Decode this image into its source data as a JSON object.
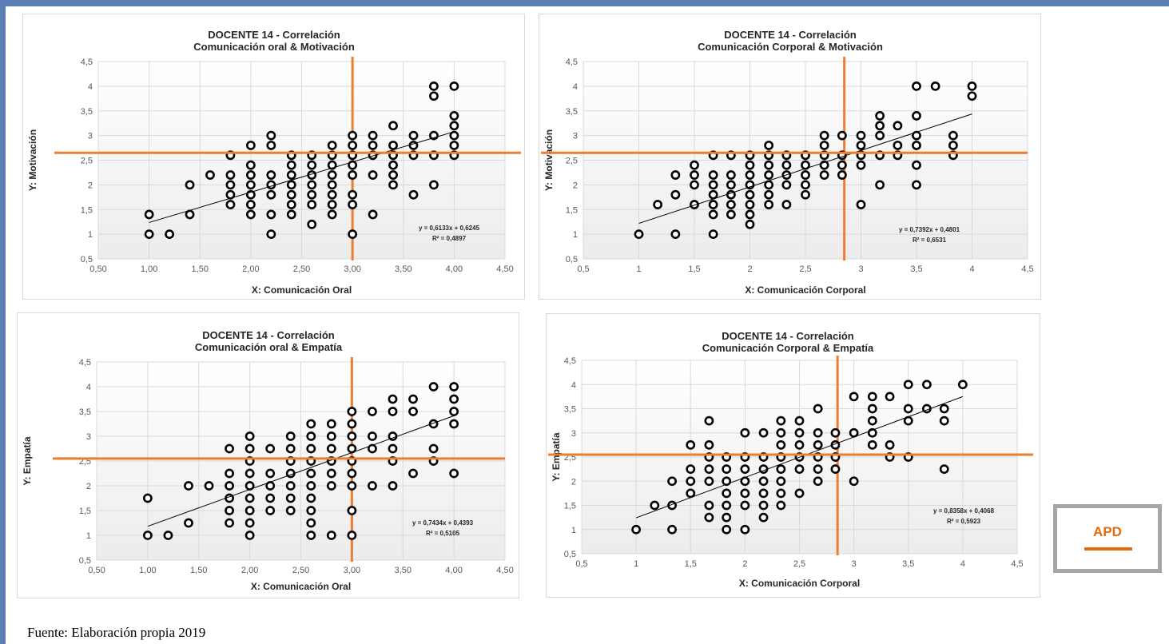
{
  "source_note": "Fuente: Elaboración propia 2019",
  "badge": {
    "label": "APD",
    "color": "#e46c0a"
  },
  "colors": {
    "reference_lines": "#ed7d31",
    "points": "#000000",
    "frame": "#5b7fb5"
  },
  "chart_data": [
    {
      "type": "scatter",
      "title": [
        "DOCENTE 14 - Correlación",
        "Comunicación oral & Motivación"
      ],
      "xlabel": "X: Comunicación Oral",
      "ylabel": "Y: Motivación",
      "xlim": [
        0.5,
        4.5
      ],
      "ylim": [
        0.5,
        4.5
      ],
      "xticks": [
        "0,50",
        "1,00",
        "1,50",
        "2,00",
        "2,50",
        "3,00",
        "3,50",
        "4,00",
        "4,50"
      ],
      "yticks": [
        "0,5",
        "1",
        "1,5",
        "2",
        "2,5",
        "3",
        "3,5",
        "4",
        "4,5"
      ],
      "equation": "y = 0,6133x + 0,6245",
      "r2": "R² = 0,4897",
      "trend": {
        "slope": 0.6133,
        "intercept": 0.6245
      },
      "reference_lines": {
        "x": 3.0,
        "y": 2.65
      },
      "points": [
        [
          1,
          1
        ],
        [
          1,
          1.4
        ],
        [
          1.2,
          1
        ],
        [
          1.4,
          1.4
        ],
        [
          1.4,
          2
        ],
        [
          1.6,
          2.2
        ],
        [
          1.8,
          1.6
        ],
        [
          1.8,
          1.8
        ],
        [
          1.8,
          2
        ],
        [
          1.8,
          2.2
        ],
        [
          1.8,
          2.6
        ],
        [
          2,
          1.4
        ],
        [
          2,
          1.6
        ],
        [
          2,
          1.8
        ],
        [
          2,
          2
        ],
        [
          2,
          2.2
        ],
        [
          2,
          2.4
        ],
        [
          2,
          2.8
        ],
        [
          2.2,
          1
        ],
        [
          2.2,
          1.4
        ],
        [
          2.2,
          1.8
        ],
        [
          2.2,
          2
        ],
        [
          2.2,
          2.2
        ],
        [
          2.2,
          2.8
        ],
        [
          2.2,
          3
        ],
        [
          2.4,
          1.4
        ],
        [
          2.4,
          1.6
        ],
        [
          2.4,
          1.8
        ],
        [
          2.4,
          2
        ],
        [
          2.4,
          2.2
        ],
        [
          2.4,
          2.4
        ],
        [
          2.4,
          2.6
        ],
        [
          2.6,
          1.2
        ],
        [
          2.6,
          1.6
        ],
        [
          2.6,
          1.8
        ],
        [
          2.6,
          2
        ],
        [
          2.6,
          2.2
        ],
        [
          2.6,
          2.4
        ],
        [
          2.6,
          2.6
        ],
        [
          2.8,
          1.4
        ],
        [
          2.8,
          1.6
        ],
        [
          2.8,
          1.8
        ],
        [
          2.8,
          2
        ],
        [
          2.8,
          2.2
        ],
        [
          2.8,
          2.4
        ],
        [
          2.8,
          2.6
        ],
        [
          2.8,
          2.8
        ],
        [
          3,
          1
        ],
        [
          3,
          1.6
        ],
        [
          3,
          1.8
        ],
        [
          3,
          2.2
        ],
        [
          3,
          2.4
        ],
        [
          3,
          2.6
        ],
        [
          3,
          2.8
        ],
        [
          3,
          3
        ],
        [
          3.2,
          1.4
        ],
        [
          3.2,
          2.2
        ],
        [
          3.2,
          2.6
        ],
        [
          3.2,
          2.8
        ],
        [
          3.2,
          3
        ],
        [
          3.4,
          2
        ],
        [
          3.4,
          2.2
        ],
        [
          3.4,
          2.4
        ],
        [
          3.4,
          2.6
        ],
        [
          3.4,
          2.8
        ],
        [
          3.4,
          3.2
        ],
        [
          3.6,
          1.8
        ],
        [
          3.6,
          2.6
        ],
        [
          3.6,
          2.8
        ],
        [
          3.6,
          3
        ],
        [
          3.8,
          2
        ],
        [
          3.8,
          2.6
        ],
        [
          3.8,
          3
        ],
        [
          3.8,
          3.8
        ],
        [
          3.8,
          4
        ],
        [
          4,
          2.6
        ],
        [
          4,
          2.8
        ],
        [
          4,
          3
        ],
        [
          4,
          3.2
        ],
        [
          4,
          3.4
        ],
        [
          4,
          4
        ]
      ]
    },
    {
      "type": "scatter",
      "title": [
        "DOCENTE 14 - Correlación",
        "Comunicación Corporal & Motivación"
      ],
      "xlabel": "X: Comunicación Corporal",
      "ylabel": "Y: Motivación",
      "xlim": [
        0.5,
        4.5
      ],
      "ylim": [
        0.5,
        4.5
      ],
      "xticks": [
        "0,5",
        "1",
        "1,5",
        "2",
        "2,5",
        "3",
        "3,5",
        "4",
        "4,5"
      ],
      "yticks": [
        "0,5",
        "1",
        "1,5",
        "2",
        "2,5",
        "3",
        "3,5",
        "4",
        "4,5"
      ],
      "equation": "y = 0,7392x + 0,4801",
      "r2": "R² = 0,6531",
      "trend": {
        "slope": 0.7392,
        "intercept": 0.4801
      },
      "reference_lines": {
        "x": 2.85,
        "y": 2.65
      },
      "points": [
        [
          1,
          1
        ],
        [
          1.17,
          1.6
        ],
        [
          1.33,
          1
        ],
        [
          1.33,
          1.8
        ],
        [
          1.33,
          2.2
        ],
        [
          1.5,
          1.6
        ],
        [
          1.5,
          2
        ],
        [
          1.5,
          2.2
        ],
        [
          1.5,
          2.4
        ],
        [
          1.67,
          1
        ],
        [
          1.67,
          1.4
        ],
        [
          1.67,
          1.6
        ],
        [
          1.67,
          1.8
        ],
        [
          1.67,
          2
        ],
        [
          1.67,
          2.2
        ],
        [
          1.67,
          2.6
        ],
        [
          1.83,
          1.4
        ],
        [
          1.83,
          1.6
        ],
        [
          1.83,
          1.8
        ],
        [
          1.83,
          2
        ],
        [
          1.83,
          2.2
        ],
        [
          1.83,
          2.6
        ],
        [
          2,
          1.2
        ],
        [
          2,
          1.4
        ],
        [
          2,
          1.6
        ],
        [
          2,
          1.8
        ],
        [
          2,
          2
        ],
        [
          2,
          2.2
        ],
        [
          2,
          2.4
        ],
        [
          2,
          2.6
        ],
        [
          2.17,
          1.6
        ],
        [
          2.17,
          1.8
        ],
        [
          2.17,
          2
        ],
        [
          2.17,
          2.2
        ],
        [
          2.17,
          2.4
        ],
        [
          2.17,
          2.6
        ],
        [
          2.17,
          2.8
        ],
        [
          2.33,
          1.6
        ],
        [
          2.33,
          2
        ],
        [
          2.33,
          2.2
        ],
        [
          2.33,
          2.4
        ],
        [
          2.33,
          2.6
        ],
        [
          2.5,
          1.8
        ],
        [
          2.5,
          2
        ],
        [
          2.5,
          2.2
        ],
        [
          2.5,
          2.4
        ],
        [
          2.5,
          2.6
        ],
        [
          2.67,
          2.2
        ],
        [
          2.67,
          2.4
        ],
        [
          2.67,
          2.6
        ],
        [
          2.67,
          2.8
        ],
        [
          2.67,
          3
        ],
        [
          2.83,
          2.2
        ],
        [
          2.83,
          2.4
        ],
        [
          2.83,
          2.6
        ],
        [
          2.83,
          3
        ],
        [
          3,
          1.6
        ],
        [
          3,
          2.4
        ],
        [
          3,
          2.6
        ],
        [
          3,
          2.8
        ],
        [
          3,
          3
        ],
        [
          3.17,
          2
        ],
        [
          3.17,
          2.6
        ],
        [
          3.17,
          3
        ],
        [
          3.17,
          3.2
        ],
        [
          3.17,
          3.4
        ],
        [
          3.33,
          2.6
        ],
        [
          3.33,
          2.8
        ],
        [
          3.33,
          3.2
        ],
        [
          3.5,
          2
        ],
        [
          3.5,
          2.4
        ],
        [
          3.5,
          2.8
        ],
        [
          3.5,
          3
        ],
        [
          3.5,
          3.4
        ],
        [
          3.5,
          4
        ],
        [
          3.67,
          4
        ],
        [
          3.83,
          2.6
        ],
        [
          3.83,
          2.8
        ],
        [
          3.83,
          3
        ],
        [
          4,
          3.8
        ],
        [
          4,
          4
        ]
      ]
    },
    {
      "type": "scatter",
      "title": [
        "DOCENTE 14 - Correlación",
        "Comunicación oral & Empatía"
      ],
      "xlabel": "X: Comunicación Oral",
      "ylabel": "Y: Empatía",
      "xlim": [
        0.5,
        4.5
      ],
      "ylim": [
        0.5,
        4.5
      ],
      "xticks": [
        "0,50",
        "1,00",
        "1,50",
        "2,00",
        "2,50",
        "3,00",
        "3,50",
        "4,00",
        "4,50"
      ],
      "yticks": [
        "0,5",
        "1",
        "1,5",
        "2",
        "2,5",
        "3",
        "3,5",
        "4",
        "4,5"
      ],
      "equation": "y = 0,7434x + 0,4393",
      "r2": "R² = 0,5105",
      "trend": {
        "slope": 0.7434,
        "intercept": 0.4393
      },
      "reference_lines": {
        "x": 3.0,
        "y": 2.55
      },
      "points": [
        [
          1,
          1
        ],
        [
          1,
          1.75
        ],
        [
          1.2,
          1
        ],
        [
          1.4,
          1.25
        ],
        [
          1.4,
          2
        ],
        [
          1.6,
          2
        ],
        [
          1.8,
          1.25
        ],
        [
          1.8,
          1.5
        ],
        [
          1.8,
          1.75
        ],
        [
          1.8,
          2
        ],
        [
          1.8,
          2.25
        ],
        [
          1.8,
          2.75
        ],
        [
          2,
          1
        ],
        [
          2,
          1.25
        ],
        [
          2,
          1.5
        ],
        [
          2,
          1.75
        ],
        [
          2,
          2
        ],
        [
          2,
          2.25
        ],
        [
          2,
          2.5
        ],
        [
          2,
          2.75
        ],
        [
          2,
          3
        ],
        [
          2.2,
          1.5
        ],
        [
          2.2,
          1.75
        ],
        [
          2.2,
          2
        ],
        [
          2.2,
          2.25
        ],
        [
          2.2,
          2.75
        ],
        [
          2.4,
          1.5
        ],
        [
          2.4,
          1.75
        ],
        [
          2.4,
          2
        ],
        [
          2.4,
          2.25
        ],
        [
          2.4,
          2.5
        ],
        [
          2.4,
          2.75
        ],
        [
          2.4,
          3
        ],
        [
          2.6,
          1
        ],
        [
          2.6,
          1.25
        ],
        [
          2.6,
          1.5
        ],
        [
          2.6,
          1.75
        ],
        [
          2.6,
          2
        ],
        [
          2.6,
          2.25
        ],
        [
          2.6,
          2.5
        ],
        [
          2.6,
          2.75
        ],
        [
          2.6,
          3
        ],
        [
          2.6,
          3.25
        ],
        [
          2.8,
          1
        ],
        [
          2.8,
          2
        ],
        [
          2.8,
          2.25
        ],
        [
          2.8,
          2.5
        ],
        [
          2.8,
          2.75
        ],
        [
          2.8,
          3
        ],
        [
          2.8,
          3.25
        ],
        [
          3,
          1
        ],
        [
          3,
          1.5
        ],
        [
          3,
          2
        ],
        [
          3,
          2.25
        ],
        [
          3,
          2.5
        ],
        [
          3,
          2.75
        ],
        [
          3,
          3
        ],
        [
          3,
          3.25
        ],
        [
          3,
          3.5
        ],
        [
          3.2,
          2
        ],
        [
          3.2,
          2.75
        ],
        [
          3.2,
          3
        ],
        [
          3.2,
          3.5
        ],
        [
          3.4,
          2
        ],
        [
          3.4,
          2.5
        ],
        [
          3.4,
          2.75
        ],
        [
          3.4,
          3
        ],
        [
          3.4,
          3.5
        ],
        [
          3.4,
          3.75
        ],
        [
          3.6,
          2.25
        ],
        [
          3.6,
          3.5
        ],
        [
          3.6,
          3.75
        ],
        [
          3.8,
          2.5
        ],
        [
          3.8,
          2.75
        ],
        [
          3.8,
          3.25
        ],
        [
          3.8,
          4
        ],
        [
          4,
          2.25
        ],
        [
          4,
          3.25
        ],
        [
          4,
          3.5
        ],
        [
          4,
          3.75
        ],
        [
          4,
          4
        ]
      ]
    },
    {
      "type": "scatter",
      "title": [
        "DOCENTE 14 - Correlación",
        "Comunicación Corporal & Empatía"
      ],
      "xlabel": "X: Comunicación Corporal",
      "ylabel": "Y: Empatía",
      "xlim": [
        0.5,
        4.5
      ],
      "ylim": [
        0.5,
        4.5
      ],
      "xticks": [
        "0,5",
        "1",
        "1,5",
        "2",
        "2,5",
        "3",
        "3,5",
        "4",
        "4,5"
      ],
      "yticks": [
        "0,5",
        "1",
        "1,5",
        "2",
        "2,5",
        "3",
        "3,5",
        "4",
        "4,5"
      ],
      "equation": "y = 0,8358x + 0,4068",
      "r2": "R² = 0,5923",
      "trend": {
        "slope": 0.8358,
        "intercept": 0.4068
      },
      "reference_lines": {
        "x": 2.85,
        "y": 2.55
      },
      "points": [
        [
          1,
          1
        ],
        [
          1.17,
          1.5
        ],
        [
          1.33,
          1
        ],
        [
          1.33,
          1.5
        ],
        [
          1.33,
          2
        ],
        [
          1.5,
          1.75
        ],
        [
          1.5,
          2
        ],
        [
          1.5,
          2.25
        ],
        [
          1.5,
          2.75
        ],
        [
          1.67,
          1.25
        ],
        [
          1.67,
          1.5
        ],
        [
          1.67,
          2
        ],
        [
          1.67,
          2.25
        ],
        [
          1.67,
          2.5
        ],
        [
          1.67,
          2.75
        ],
        [
          1.67,
          3.25
        ],
        [
          1.83,
          1
        ],
        [
          1.83,
          1.25
        ],
        [
          1.83,
          1.5
        ],
        [
          1.83,
          1.75
        ],
        [
          1.83,
          2
        ],
        [
          1.83,
          2.25
        ],
        [
          1.83,
          2.5
        ],
        [
          2,
          1
        ],
        [
          2,
          1.5
        ],
        [
          2,
          1.75
        ],
        [
          2,
          2
        ],
        [
          2,
          2.25
        ],
        [
          2,
          2.5
        ],
        [
          2,
          3
        ],
        [
          2.17,
          1.25
        ],
        [
          2.17,
          1.5
        ],
        [
          2.17,
          1.75
        ],
        [
          2.17,
          2
        ],
        [
          2.17,
          2.25
        ],
        [
          2.17,
          2.5
        ],
        [
          2.17,
          3
        ],
        [
          2.33,
          1.5
        ],
        [
          2.33,
          1.75
        ],
        [
          2.33,
          2
        ],
        [
          2.33,
          2.25
        ],
        [
          2.33,
          2.5
        ],
        [
          2.33,
          2.75
        ],
        [
          2.33,
          3
        ],
        [
          2.33,
          3.25
        ],
        [
          2.5,
          1.75
        ],
        [
          2.5,
          2.25
        ],
        [
          2.5,
          2.5
        ],
        [
          2.5,
          2.75
        ],
        [
          2.5,
          3
        ],
        [
          2.5,
          3.25
        ],
        [
          2.67,
          2
        ],
        [
          2.67,
          2.25
        ],
        [
          2.67,
          2.5
        ],
        [
          2.67,
          2.75
        ],
        [
          2.67,
          3
        ],
        [
          2.67,
          3.5
        ],
        [
          2.83,
          2.25
        ],
        [
          2.83,
          2.5
        ],
        [
          2.83,
          2.75
        ],
        [
          2.83,
          3
        ],
        [
          3,
          2
        ],
        [
          3,
          3
        ],
        [
          3,
          3.75
        ],
        [
          3.17,
          2.75
        ],
        [
          3.17,
          3
        ],
        [
          3.17,
          3.25
        ],
        [
          3.17,
          3.5
        ],
        [
          3.17,
          3.75
        ],
        [
          3.33,
          2.5
        ],
        [
          3.33,
          2.75
        ],
        [
          3.33,
          3.75
        ],
        [
          3.5,
          2.5
        ],
        [
          3.5,
          3.25
        ],
        [
          3.5,
          3.5
        ],
        [
          3.5,
          4
        ],
        [
          3.67,
          3.5
        ],
        [
          3.67,
          4
        ],
        [
          3.83,
          2.25
        ],
        [
          3.83,
          3.25
        ],
        [
          3.83,
          3.5
        ],
        [
          4,
          4
        ]
      ]
    }
  ]
}
